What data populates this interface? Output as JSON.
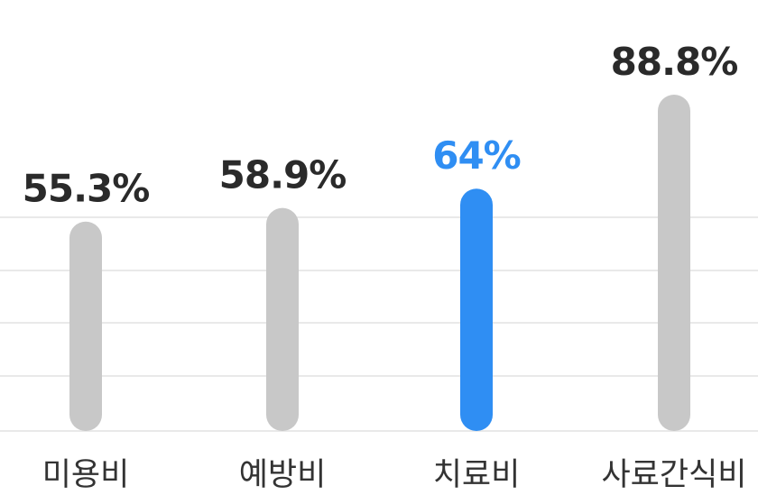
{
  "chart_data": {
    "type": "bar",
    "categories": [
      "미용비",
      "예방비",
      "치료비",
      "사료간식비"
    ],
    "values": [
      55.3,
      58.9,
      64,
      88.8
    ],
    "value_labels": [
      "55.3%",
      "58.9%",
      "64%",
      "88.8%"
    ],
    "highlight_index": 2,
    "ylim": [
      0,
      100
    ],
    "grid": true,
    "title": "",
    "xlabel": "",
    "ylabel": ""
  },
  "colors": {
    "bar": "#c8c8c8",
    "highlight_bar": "#2f8ef3",
    "label": "#2a2a2a",
    "highlight_label": "#2f8ef3"
  }
}
